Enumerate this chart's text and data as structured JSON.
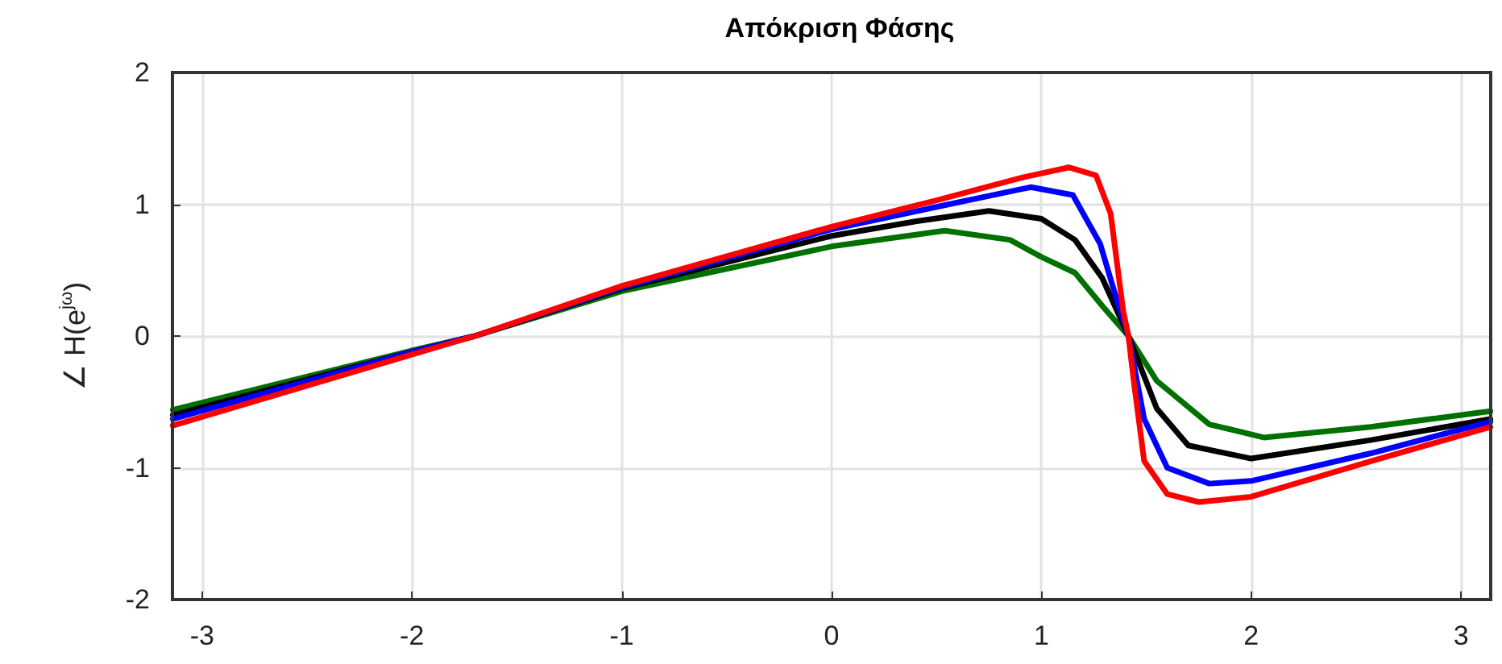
{
  "chart_data": {
    "type": "line",
    "title": "Απόκριση Φάσης",
    "ylabel": "∠ H(e$^{jω}$)",
    "xlim": [
      -3.1416,
      3.1416
    ],
    "xticks": [
      -3,
      -2,
      -1,
      0,
      1,
      2,
      3
    ],
    "ylim": [
      -2,
      2
    ],
    "yticks": [
      -2,
      -1,
      0,
      1,
      2
    ],
    "grid": true,
    "marker": "none",
    "line_style": "solid",
    "series": [
      {
        "color": "#007000",
        "x": [
          -3.14,
          -2,
          -1.7,
          -1,
          0,
          0.54,
          0.85,
          1.0,
          1.16,
          1.29,
          1.415,
          1.55,
          1.8,
          2.06,
          2.57,
          3.14
        ],
        "values": [
          -0.56,
          -0.11,
          0,
          0.34,
          0.68,
          0.8,
          0.73,
          0.6,
          0.48,
          0.23,
          0,
          -0.34,
          -0.67,
          -0.77,
          -0.69,
          -0.57
        ]
      },
      {
        "color": "#000000",
        "x": [
          -3.14,
          -2,
          -1.7,
          -1,
          0,
          0.4,
          0.75,
          1.0,
          1.16,
          1.29,
          1.415,
          1.55,
          1.7,
          2,
          2.57,
          3.14
        ],
        "values": [
          -0.6,
          -0.12,
          0,
          0.36,
          0.76,
          0.87,
          0.95,
          0.89,
          0.73,
          0.44,
          0,
          -0.55,
          -0.83,
          -0.93,
          -0.79,
          -0.63
        ]
      },
      {
        "color": "#0000ff",
        "x": [
          -3.14,
          -2,
          -1.7,
          -1,
          0,
          0.5,
          0.95,
          1.15,
          1.28,
          1.36,
          1.415,
          1.49,
          1.6,
          1.8,
          2,
          2.57,
          3.14
        ],
        "values": [
          -0.63,
          -0.12,
          0,
          0.37,
          0.81,
          0.98,
          1.13,
          1.07,
          0.7,
          0.27,
          0,
          -0.63,
          -1.0,
          -1.12,
          -1.1,
          -0.89,
          -0.65
        ]
      },
      {
        "color": "#ff0000",
        "x": [
          -3.14,
          -2,
          -1.7,
          -1,
          0,
          0.5,
          0.9,
          1.13,
          1.26,
          1.33,
          1.39,
          1.415,
          1.44,
          1.49,
          1.6,
          1.75,
          2,
          2.57,
          3.14
        ],
        "values": [
          -0.68,
          -0.14,
          0,
          0.38,
          0.83,
          1.03,
          1.2,
          1.28,
          1.22,
          0.93,
          0.19,
          0,
          -0.34,
          -0.95,
          -1.2,
          -1.26,
          -1.22,
          -0.95,
          -0.69
        ]
      }
    ]
  }
}
